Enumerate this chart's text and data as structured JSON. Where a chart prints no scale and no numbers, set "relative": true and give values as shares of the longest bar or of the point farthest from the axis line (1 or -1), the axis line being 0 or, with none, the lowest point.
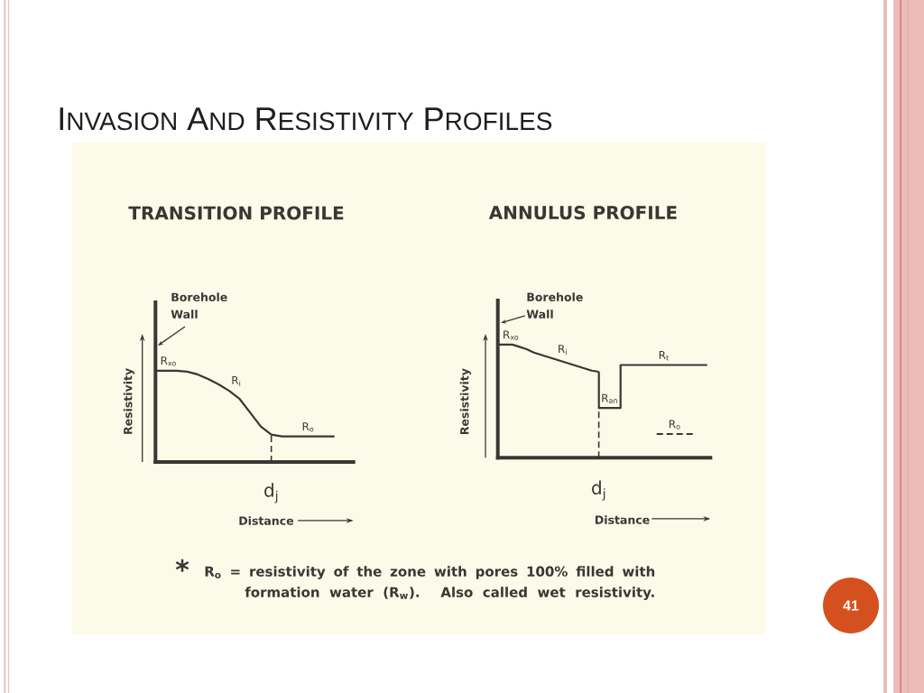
{
  "chart_data": [
    {
      "type": "other",
      "title": "INVASION AND RESISTIVITY PROFILES"
    },
    {
      "type": "line",
      "title": "TRANSITION PROFILE",
      "xlabel": "Distance",
      "ylabel": "Resistivity",
      "relative": true,
      "categories": [
        null,
        null,
        null,
        null,
        null,
        null,
        null,
        null,
        null,
        null,
        null,
        null,
        null,
        null,
        null,
        null,
        null,
        null
      ],
      "series": [
        {
          "color": "#3a3733",
          "values": [
            1,
            1,
            1,
            0.99,
            0.96,
            0.91,
            0.85,
            0.78,
            0.69,
            0.54,
            0.39,
            0.3,
            0.28,
            0.28,
            0.28,
            0.28,
            0.28,
            0.28
          ]
        }
      ],
      "annotations": [
        "Borehole Wall",
        "R$_{xo}$",
        "R$_{i}$",
        "R$_{o}$",
        "d$_{j}$"
      ]
    },
    {
      "type": "line",
      "title": "ANNULUS PROFILE",
      "xlabel": "Distance",
      "ylabel": "Resistivity",
      "relative": true,
      "categories": [
        null,
        null,
        null,
        null,
        null,
        null,
        null,
        null,
        null,
        null,
        null,
        null,
        null,
        null,
        null,
        null,
        null,
        null,
        null,
        null,
        null,
        null,
        null,
        null,
        null,
        null,
        null,
        null,
        null,
        null
      ],
      "series": [
        {
          "color": "#3a3733",
          "values": [
            1,
            1,
            1,
            0.98,
            0.96,
            0.93,
            0.91,
            0.89,
            0.87,
            0.85,
            0.83,
            0.81,
            0.79,
            0.77,
            0.76,
            null,
            null,
            null,
            null,
            null,
            null,
            null,
            null,
            null,
            null,
            null,
            null,
            null,
            null,
            null
          ]
        },
        {
          "type": "step",
          "color": "#3a3733",
          "values": [
            null,
            null,
            null,
            null,
            null,
            null,
            null,
            null,
            null,
            null,
            null,
            null,
            null,
            null,
            0.76,
            0.44,
            0.44,
            0.44,
            0.82,
            0.82,
            0.82,
            0.82,
            0.82,
            0.82,
            0.82,
            0.82,
            0.82,
            0.82,
            0.82,
            0.82
          ]
        },
        {
          "name": "R$_{o}$",
          "color": "#3a3733",
          "line_style": "dashed",
          "values": [
            null,
            null,
            null,
            null,
            null,
            null,
            null,
            null,
            null,
            null,
            null,
            null,
            null,
            null,
            null,
            null,
            null,
            null,
            null,
            null,
            null,
            null,
            0.21,
            0.21,
            0.21,
            0.21,
            0.21,
            0.21,
            null,
            null
          ]
        }
      ],
      "annotations": [
        "Borehole Wall",
        "R$_{xo}$",
        "R$_{i}$",
        "R$_{an}$",
        "R$_{t}$",
        "d$_{j}$"
      ]
    },
    {
      "type": "other",
      "annotations": [
        "*",
        "R$_{o}$ = resistivity of the zone with pores 100% filled with formation water (R$_{w}$). Also called wet resistivity.",
        "41"
      ]
    }
  ]
}
